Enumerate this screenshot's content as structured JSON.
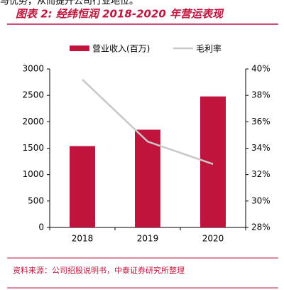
{
  "top_text": "与优势，从而提升公司行业地位。",
  "chart_data": {
    "type": "bar_line",
    "title": "图表 2: 经纬恒润 2018-2020 年营运表现",
    "categories": [
      "2018",
      "2019",
      "2020"
    ],
    "series": [
      {
        "name": "营业收入(百万)",
        "color": "#c0143c",
        "type": "bar",
        "values": [
          1540,
          1850,
          2480
        ]
      },
      {
        "name": "毛利率",
        "color": "#c8c8c8",
        "type": "line",
        "axis": "y2",
        "values": [
          39.2,
          34.5,
          32.8
        ]
      }
    ],
    "ylim": [
      0,
      3000
    ],
    "yticks": [
      0,
      500,
      1000,
      1500,
      2000,
      2500,
      3000
    ],
    "y2lim": [
      28,
      40
    ],
    "y2ticks": [
      {
        "value": 28,
        "label": "28%"
      },
      {
        "value": 30,
        "label": "30%"
      },
      {
        "value": 32,
        "label": "32%"
      },
      {
        "value": 34,
        "label": "34%"
      },
      {
        "value": 36,
        "label": "36%"
      },
      {
        "value": 38,
        "label": "38%"
      },
      {
        "value": 40,
        "label": "40%"
      }
    ],
    "source": "资料来源：公司招股说明书，中泰证券研究所整理"
  }
}
